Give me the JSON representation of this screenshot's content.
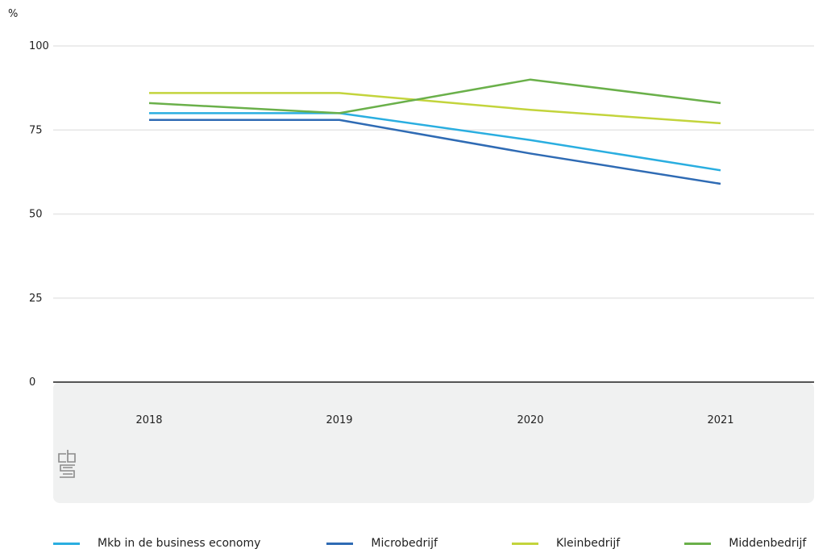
{
  "chart_data": {
    "type": "line",
    "title": "",
    "ylabel": "%",
    "xlabel": "",
    "ylim": [
      0,
      100
    ],
    "yticks": [
      0,
      25,
      50,
      75,
      100
    ],
    "grid": true,
    "legend_position": "bottom",
    "x": [
      "2018",
      "2019",
      "2020",
      "2021"
    ],
    "series": [
      {
        "name": "Mkb in de business economy",
        "color": "#2aaee0",
        "values": [
          80,
          80,
          72,
          63
        ]
      },
      {
        "name": "Microbedrijf",
        "color": "#2f6bb4",
        "values": [
          78,
          78,
          68,
          59
        ]
      },
      {
        "name": "Kleinbedrijf",
        "color": "#c3d43c",
        "values": [
          86,
          86,
          81,
          77
        ]
      },
      {
        "name": "Middenbedrijf",
        "color": "#6ab04a",
        "values": [
          83,
          80,
          90,
          83
        ]
      }
    ]
  },
  "logo": {
    "icon": "cbs-logo-icon",
    "text": "cbs"
  }
}
